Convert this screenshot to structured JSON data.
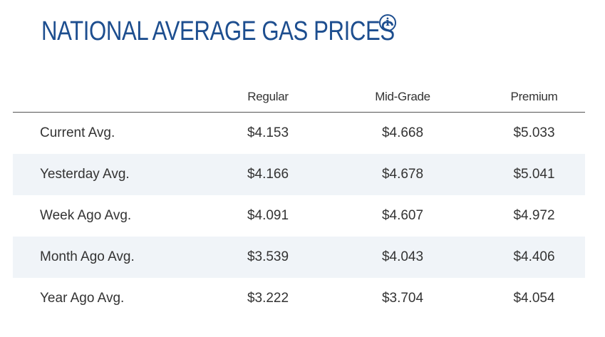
{
  "header": {
    "title": "NATIONAL AVERAGE GAS PRICES",
    "info_icon": "info-icon"
  },
  "table": {
    "columns": [
      "",
      "Regular",
      "Mid-Grade",
      "Premium"
    ],
    "rows": [
      {
        "label": "Current Avg.",
        "regular": "$4.153",
        "mid_grade": "$4.668",
        "premium": "$5.033"
      },
      {
        "label": "Yesterday Avg.",
        "regular": "$4.166",
        "mid_grade": "$4.678",
        "premium": "$5.041"
      },
      {
        "label": "Week Ago Avg.",
        "regular": "$4.091",
        "mid_grade": "$4.607",
        "premium": "$4.972"
      },
      {
        "label": "Month Ago Avg.",
        "regular": "$3.539",
        "mid_grade": "$4.043",
        "premium": "$4.406"
      },
      {
        "label": "Year Ago Avg.",
        "regular": "$3.222",
        "mid_grade": "$3.704",
        "premium": "$4.054"
      }
    ]
  },
  "colors": {
    "title": "#1d4e8f",
    "row_alt_bg": "#f0f4f8",
    "text": "#333333"
  }
}
